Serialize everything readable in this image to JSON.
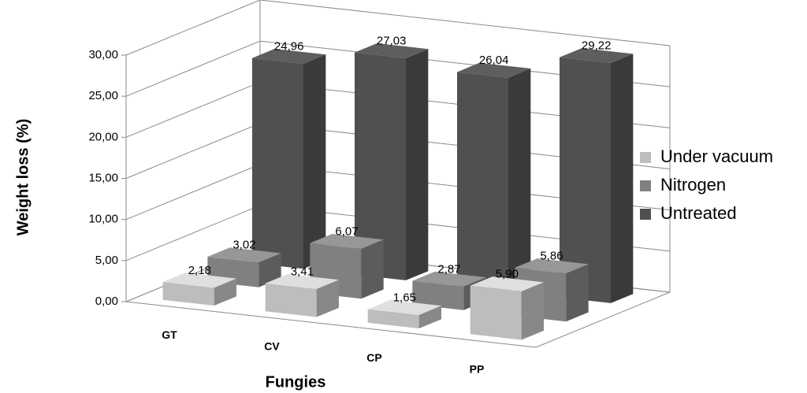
{
  "chart_data": {
    "type": "bar3d",
    "x_label": "Fungies",
    "y_label": "Weight loss (%)",
    "categories": [
      "GT",
      "CV",
      "CP",
      "PP"
    ],
    "series": [
      {
        "name": "Under vacuum",
        "color": "#bdbdbd",
        "values": [
          2.18,
          3.41,
          1.65,
          5.9
        ],
        "value_labels": [
          "2,18",
          "3,41",
          "1,65",
          "5,90"
        ]
      },
      {
        "name": "Nitrogen",
        "color": "#808080",
        "values": [
          3.02,
          6.07,
          2.87,
          5.86
        ],
        "value_labels": [
          "3,02",
          "6,07",
          "2,87",
          "5,86"
        ]
      },
      {
        "name": "Untreated",
        "color": "#505050",
        "values": [
          24.96,
          27.03,
          26.04,
          29.22
        ],
        "value_labels": [
          "24,96",
          "27,03",
          "26,04",
          "29,22"
        ]
      }
    ],
    "ylim": [
      0,
      30
    ],
    "yticks": [
      {
        "value": 0,
        "label": "0,00"
      },
      {
        "value": 5,
        "label": "5,00"
      },
      {
        "value": 10,
        "label": "10,00"
      },
      {
        "value": 15,
        "label": "15,00"
      },
      {
        "value": 20,
        "label": "20,00"
      },
      {
        "value": 25,
        "label": "25,00"
      },
      {
        "value": 30,
        "label": "30,00"
      }
    ],
    "grid": true,
    "legend": "right"
  }
}
